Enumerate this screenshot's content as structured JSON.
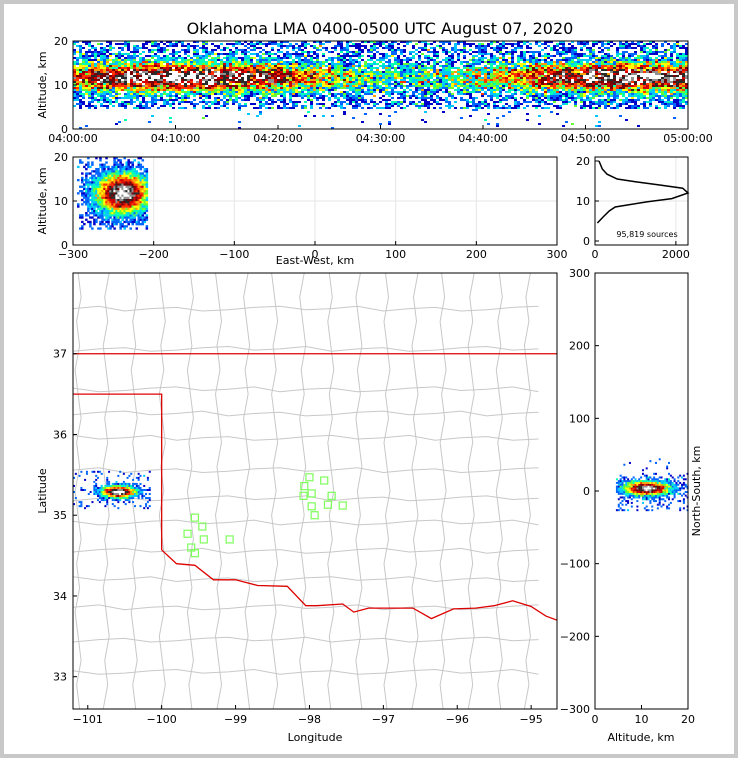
{
  "chart_data": [
    {
      "type": "heatmap",
      "panel": "altitude-time",
      "title": "Oklahoma LMA 0400-0500 UTC August 07, 2020",
      "xlabel": "",
      "ylabel": "Altitude, km",
      "xticks": [
        "04:00:00",
        "04:10:00",
        "04:20:00",
        "04:30:00",
        "04:40:00",
        "04:50:00",
        "05:00:00"
      ],
      "yticks": [
        0,
        10,
        20
      ],
      "ylim": [
        0,
        20
      ],
      "xlim_minutes": [
        0,
        60
      ],
      "band_center_km": 12,
      "band_spread_km": [
        5,
        20
      ]
    },
    {
      "type": "heatmap",
      "panel": "altitude-eastwest",
      "xlabel": "East-West, km",
      "ylabel": "Altitude, km",
      "xticks": [
        -300,
        -200,
        -100,
        0,
        100,
        200,
        300
      ],
      "yticks": [
        0,
        10,
        20
      ],
      "xlim": [
        -300,
        300
      ],
      "ylim": [
        0,
        20
      ],
      "cluster": {
        "x_range": [
          -295,
          -210
        ],
        "peak_x": -240,
        "peak_alt": 12
      }
    },
    {
      "type": "line",
      "panel": "altitude-histogram",
      "annotation": "95,819 sources",
      "xticks": [
        0,
        2000
      ],
      "yticks": [
        0,
        10,
        20
      ],
      "xlim": [
        0,
        2300
      ],
      "ylim": [
        0,
        20
      ],
      "x": [
        60,
        200,
        350,
        500,
        800,
        1300,
        1900,
        2300,
        2170,
        1600,
        1000,
        550,
        300,
        180,
        100
      ],
      "y": [
        4.5,
        6,
        7.5,
        8.5,
        9,
        9.8,
        10.6,
        12,
        13.2,
        14,
        14.8,
        15.5,
        16.7,
        18,
        20
      ]
    },
    {
      "type": "map",
      "panel": "plan-view",
      "xlabel": "Longitude",
      "ylabel": "Latitude",
      "xticks": [
        -101,
        -100,
        -99,
        -98,
        -97,
        -96,
        -95
      ],
      "yticks": [
        33,
        34,
        35,
        36,
        37
      ],
      "xlim": [
        -101.2,
        -94.65
      ],
      "ylim": [
        32.6,
        38.0
      ],
      "cluster": {
        "lon": -100.6,
        "lat": 35.3
      },
      "stations": [
        {
          "lon": -99.55,
          "lat": 34.97
        },
        {
          "lon": -99.45,
          "lat": 34.86
        },
        {
          "lon": -99.65,
          "lat": 34.77
        },
        {
          "lon": -99.43,
          "lat": 34.7
        },
        {
          "lon": -99.6,
          "lat": 34.6
        },
        {
          "lon": -99.55,
          "lat": 34.53
        },
        {
          "lon": -99.08,
          "lat": 34.7
        },
        {
          "lon": -98.0,
          "lat": 35.47
        },
        {
          "lon": -97.8,
          "lat": 35.43
        },
        {
          "lon": -98.07,
          "lat": 35.36
        },
        {
          "lon": -97.97,
          "lat": 35.27
        },
        {
          "lon": -98.08,
          "lat": 35.24
        },
        {
          "lon": -97.7,
          "lat": 35.24
        },
        {
          "lon": -97.97,
          "lat": 35.11
        },
        {
          "lon": -97.75,
          "lat": 35.13
        },
        {
          "lon": -97.55,
          "lat": 35.12
        },
        {
          "lon": -97.93,
          "lat": 35.0
        }
      ]
    },
    {
      "type": "heatmap",
      "panel": "northsouth-altitude",
      "xlabel": "Altitude, km",
      "ylabel": "North-South, km",
      "xticks": [
        0,
        10,
        20
      ],
      "yticks": [
        -300,
        -200,
        -100,
        0,
        100,
        200,
        300
      ],
      "xlim": [
        0,
        20
      ],
      "ylim": [
        -300,
        300
      ],
      "cluster": {
        "center_alt": 11,
        "center_ns": 5
      }
    }
  ],
  "colors": {
    "boundary": "#dd0000",
    "counties": "#c8c8c8",
    "stations": "#7dff5a"
  }
}
